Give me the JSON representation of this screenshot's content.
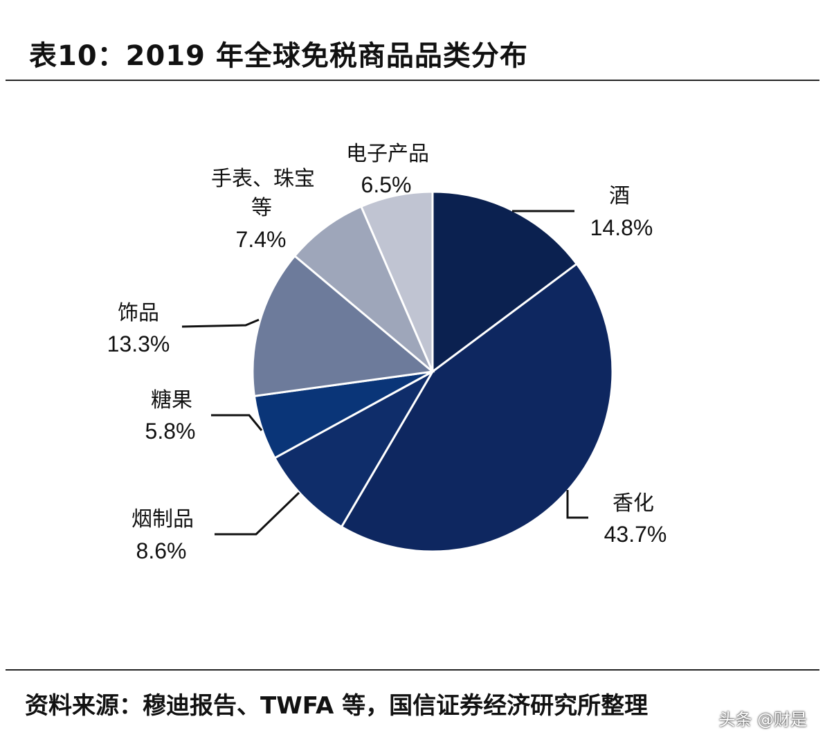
{
  "title": "表10：2019 年全球免税商品品类分布",
  "footer": "资料来源：穆迪报告、TWFA 等，国信证券经济研究所整理",
  "watermark": "头条 @财是",
  "chart_data": {
    "type": "pie",
    "title": "表10：2019 年全球免税商品品类分布",
    "start": "12 o'clock, clockwise",
    "slices": [
      {
        "label": "酒",
        "value": 14.8,
        "value_label": "14.8%",
        "color": "#0b2150"
      },
      {
        "label": "香化",
        "value": 43.7,
        "value_label": "43.7%",
        "color": "#0e2760"
      },
      {
        "label": "烟制品",
        "value": 8.6,
        "value_label": "8.6%",
        "color": "#0f2d6a"
      },
      {
        "label": "糖果",
        "value": 5.8,
        "value_label": "5.8%",
        "color": "#0a3578"
      },
      {
        "label": "饰品",
        "value": 13.3,
        "value_label": "13.3%",
        "color": "#6d7b9b"
      },
      {
        "label": "手表、珠宝等",
        "label_lines": [
          "手表、珠宝",
          "等"
        ],
        "value": 7.4,
        "value_label": "7.4%",
        "color": "#9ea6ba"
      },
      {
        "label": "电子产品",
        "value": 6.5,
        "value_label": "6.5%",
        "color": "#c0c4d2"
      }
    ]
  }
}
